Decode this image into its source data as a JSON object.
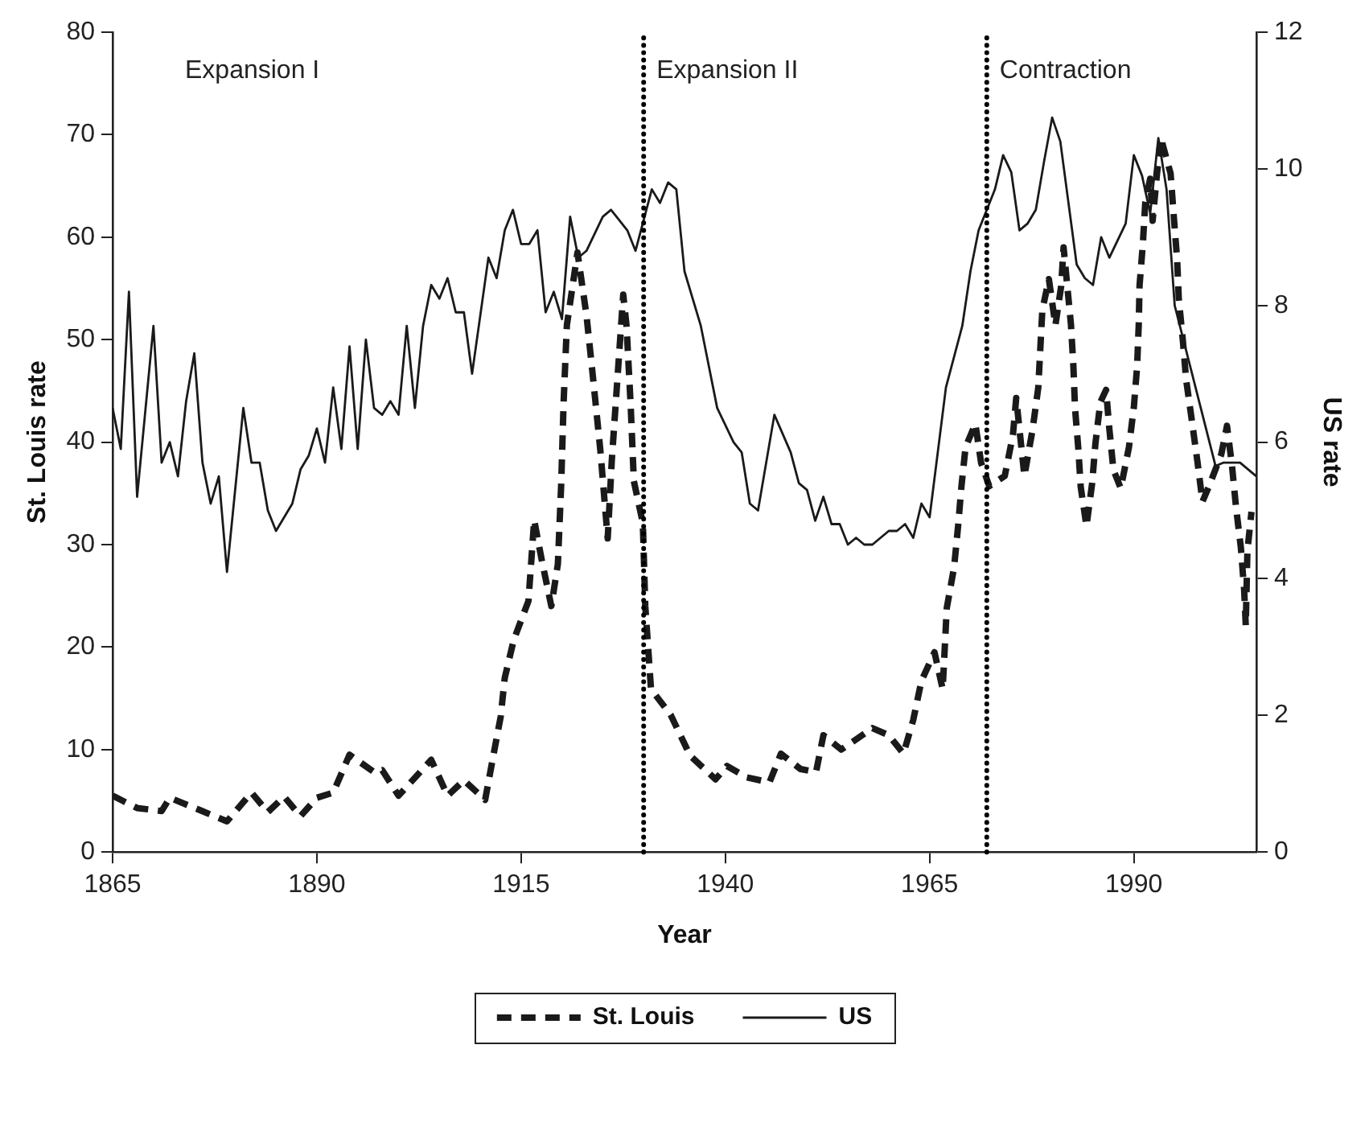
{
  "chart_data": {
    "type": "line",
    "xlabel": "Year",
    "ylabel": "St. Louis rate",
    "y2label": "US rate",
    "xlim": [
      1865,
      2005
    ],
    "xticks": [
      1865,
      1890,
      1915,
      1940,
      1965,
      1990
    ],
    "ylim": [
      0,
      80
    ],
    "yticks": [
      0,
      10,
      20,
      30,
      40,
      50,
      60,
      70,
      80
    ],
    "y2lim": [
      0,
      12
    ],
    "y2ticks": [
      0,
      2,
      4,
      6,
      8,
      10,
      12
    ],
    "grid": false,
    "legend": "bottom",
    "marker": "none",
    "ref_lines": [
      {
        "axis": "x",
        "value": 1930,
        "line_style": "dotted",
        "color": "#000000"
      },
      {
        "axis": "x",
        "value": 1972,
        "line_style": "dotted",
        "color": "#000000"
      }
    ],
    "annotations": [
      "Expansion I",
      "Expansion II",
      "Contraction"
    ],
    "series": [
      {
        "name": "St. Louis",
        "color": "#1a1a1a",
        "line_style": "dashed",
        "x": [
          1865,
          1868,
          1871,
          1872,
          1879,
          1882,
          1884,
          1886,
          1888,
          1890,
          1892,
          1894,
          1897,
          1898,
          1900,
          1904,
          1906,
          1908,
          1910.6,
          1911.6,
          1912.5,
          1913,
          1914.1,
          1915.9,
          1916.6,
          1917.5,
          1918.7,
          1919.5,
          1919.9,
          1920.2,
          1920.6,
          1921.9,
          1923,
          1923.8,
          1924.7,
          1925.6,
          1926.1,
          1926.8,
          1927.5,
          1927.9,
          1928.4,
          1928.8,
          1929.9,
          1930.2,
          1930.9,
          1933.3,
          1935.7,
          1938.8,
          1940.2,
          1942.6,
          1945.4,
          1946.8,
          1949.2,
          1951.1,
          1952,
          1954.2,
          1958,
          1960,
          1961.8,
          1963,
          1964,
          1965.6,
          1966.6,
          1967.1,
          1968,
          1968.5,
          1968.9,
          1969.4,
          1970.6,
          1971.3,
          1972.3,
          1974.2,
          1975.2,
          1975.6,
          1976.6,
          1977.6,
          1978.3,
          1978.8,
          1979.6,
          1980.4,
          1981.1,
          1981.4,
          1982.3,
          1982.6,
          1982.8,
          1983.2,
          1983.5,
          1984.2,
          1984.9,
          1985.3,
          1985.9,
          1986.6,
          1987,
          1987.5,
          1988.4,
          1989.4,
          1990,
          1990.4,
          1990.6,
          1990.7,
          1991.1,
          1991.4,
          1992,
          1992.3,
          1992.8,
          1993.3,
          1994.5,
          1994.9,
          1995.3,
          1995.5,
          1996,
          1996.4,
          1997.1,
          1997.8,
          1998.4,
          1999.2,
          2000.7,
          2001.4,
          2002,
          2002.5,
          2003.1,
          2003.5,
          2003.7,
          2003.9,
          2004.4
        ],
        "values": [
          5.5,
          4.3,
          4.0,
          5.3,
          3.0,
          5.8,
          3.9,
          5.4,
          3.5,
          5.3,
          5.8,
          9.5,
          7.8,
          8.0,
          5.5,
          9.0,
          5.5,
          7.0,
          5.1,
          9.4,
          13.2,
          17.0,
          20.7,
          24.5,
          32.4,
          28.6,
          24.0,
          28.1,
          35.7,
          43.8,
          51.4,
          58.5,
          52.4,
          46.3,
          39.2,
          30.6,
          38.2,
          46.3,
          54.4,
          51.4,
          43.8,
          36.2,
          32.1,
          24.0,
          15.9,
          13.4,
          9.4,
          7.1,
          8.4,
          7.3,
          6.8,
          9.6,
          8.1,
          7.8,
          11.4,
          10.0,
          12.1,
          11.4,
          9.6,
          12.9,
          16.7,
          19.5,
          15.9,
          23.8,
          27.8,
          31.9,
          35.7,
          39.5,
          41.8,
          38.0,
          35.7,
          36.7,
          40.7,
          44.3,
          36.7,
          41.2,
          45.3,
          52.9,
          55.9,
          51.4,
          55.2,
          59.0,
          51.5,
          47.4,
          43.3,
          39.4,
          35.6,
          31.8,
          36.0,
          39.9,
          43.9,
          45.1,
          41.3,
          37.3,
          35.5,
          39.5,
          43.4,
          47.4,
          51.5,
          55.3,
          59.3,
          63.4,
          65.7,
          61.6,
          65.9,
          69.7,
          66.2,
          61.9,
          57.8,
          54.0,
          49.9,
          46.1,
          42.1,
          38.0,
          34.2,
          35.7,
          38.8,
          41.6,
          37.8,
          33.7,
          29.7,
          25.6,
          22.1,
          29.4,
          33.2
        ]
      },
      {
        "name": "US",
        "color": "#1a1a1a",
        "line_style": "solid",
        "axis": "y2",
        "x": [
          1865,
          1866,
          1867,
          1868,
          1870,
          1871,
          1872,
          1873,
          1874,
          1875,
          1876,
          1877,
          1878,
          1879,
          1881,
          1882,
          1883,
          1884,
          1885,
          1886,
          1887,
          1888,
          1889,
          1890,
          1891,
          1892,
          1893,
          1894,
          1895,
          1896,
          1897,
          1898,
          1899,
          1900,
          1901,
          1902,
          1903,
          1904,
          1905,
          1906,
          1907,
          1908,
          1909,
          1911,
          1912,
          1913,
          1914,
          1915,
          1916,
          1917,
          1918,
          1919,
          1920,
          1921,
          1922,
          1923,
          1925,
          1926,
          1928,
          1929,
          1931,
          1932,
          1933,
          1934,
          1935,
          1937,
          1939,
          1941,
          1942,
          1943,
          1944,
          1946,
          1948,
          1949,
          1950,
          1951,
          1952,
          1953,
          1954,
          1955,
          1956,
          1957,
          1958,
          1959,
          1960,
          1961,
          1962,
          1963,
          1964,
          1965,
          1966,
          1967,
          1968,
          1969,
          1970,
          1971,
          1973,
          1974,
          1975,
          1976,
          1977,
          1978,
          1979,
          1980,
          1981,
          1982,
          1983,
          1984,
          1985,
          1986,
          1987,
          1989,
          1990,
          1991,
          1992,
          1993,
          1994,
          1995,
          2000,
          2001,
          2002,
          2003,
          2004,
          2005
        ],
        "values": [
          6.5,
          5.9,
          8.2,
          5.2,
          7.7,
          5.7,
          6.0,
          5.5,
          6.6,
          7.3,
          5.7,
          5.1,
          5.5,
          4.1,
          6.5,
          5.7,
          5.7,
          5.0,
          4.7,
          4.9,
          5.1,
          5.6,
          5.8,
          6.2,
          5.7,
          6.8,
          5.9,
          7.4,
          5.9,
          7.5,
          6.5,
          6.4,
          6.6,
          6.4,
          7.7,
          6.5,
          7.7,
          8.3,
          8.1,
          8.4,
          7.9,
          7.9,
          7.0,
          8.7,
          8.4,
          9.1,
          9.4,
          8.9,
          8.9,
          9.1,
          7.9,
          8.2,
          7.8,
          9.3,
          8.7,
          8.8,
          9.3,
          9.4,
          9.1,
          8.8,
          9.7,
          9.5,
          9.8,
          9.7,
          8.5,
          7.7,
          6.5,
          6.0,
          5.85,
          5.1,
          5.0,
          6.4,
          5.85,
          5.4,
          5.3,
          4.85,
          5.2,
          4.8,
          4.8,
          4.5,
          4.6,
          4.5,
          4.5,
          4.6,
          4.7,
          4.7,
          4.8,
          4.6,
          5.1,
          4.9,
          5.85,
          6.8,
          7.25,
          7.7,
          8.5,
          9.1,
          9.7,
          10.2,
          9.95,
          9.1,
          9.2,
          9.4,
          10.1,
          10.75,
          10.4,
          9.5,
          8.6,
          8.4,
          8.3,
          9.0,
          8.7,
          9.2,
          10.2,
          9.9,
          9.35,
          10.45,
          9.7,
          8.0,
          5.65,
          5.7,
          5.7,
          5.7,
          5.6,
          5.5
        ]
      }
    ]
  }
}
